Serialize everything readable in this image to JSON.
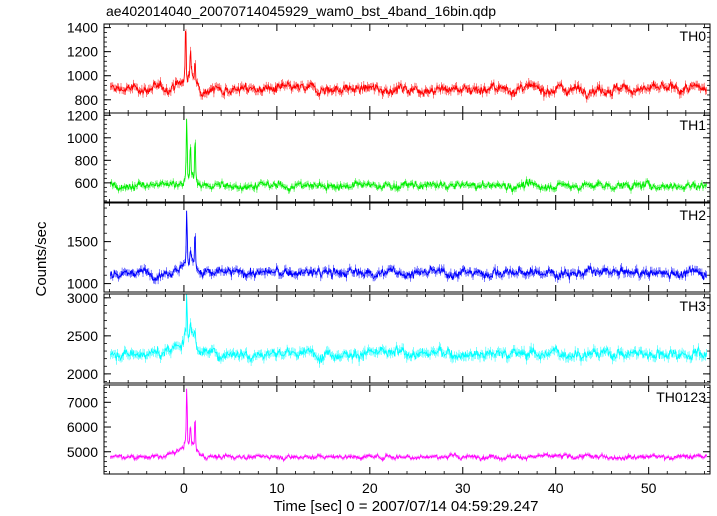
{
  "chart_data": {
    "type": "line",
    "title": "ae402014040_20070714045929_wam0_bst_4band_16bin.qdp",
    "xlabel": "Time [sec] 0 = 2007/07/14 04:59:29.247",
    "ylabel": "Counts/sec",
    "xlim": [
      -8.6,
      56.6
    ],
    "x_ticks": [
      0,
      10,
      20,
      30,
      40,
      50
    ],
    "x_tick_labels": [
      "0",
      "10",
      "20",
      "30",
      "40",
      "50"
    ],
    "error_bars": true,
    "grid": false,
    "legend": "none",
    "series": [
      {
        "name": "TH0",
        "color": "#ff0000",
        "ylim": [
          690,
          1430
        ],
        "y_ticks": [
          800,
          1000,
          1200,
          1400
        ],
        "y_tick_labels": [
          "800",
          "1000",
          "1200",
          "1400"
        ],
        "baseline": 890,
        "noise": 55,
        "peak": [
          {
            "t": 0.2,
            "v": 1400
          },
          {
            "t": 0.7,
            "v": 1150
          },
          {
            "t": 1.2,
            "v": 1050
          }
        ]
      },
      {
        "name": "TH1",
        "color": "#00ee00",
        "ylim": [
          430,
          1220
        ],
        "y_ticks": [
          600,
          800,
          1000,
          1200
        ],
        "y_tick_labels": [
          "600",
          "800",
          "1000",
          "1200"
        ],
        "baseline": 575,
        "noise": 45,
        "peak": [
          {
            "t": 0.3,
            "v": 1200
          },
          {
            "t": 0.7,
            "v": 900
          },
          {
            "t": 1.2,
            "v": 980
          }
        ]
      },
      {
        "name": "TH2",
        "color": "#0000ff",
        "ylim": [
          900,
          1960
        ],
        "y_ticks": [
          1000,
          1500
        ],
        "y_tick_labels": [
          "1000",
          "1500"
        ],
        "baseline": 1130,
        "noise": 75,
        "peak": [
          {
            "t": 0.3,
            "v": 1900
          },
          {
            "t": 0.7,
            "v": 1300
          },
          {
            "t": 1.2,
            "v": 1570
          }
        ]
      },
      {
        "name": "TH3",
        "color": "#00ffff",
        "ylim": [
          1880,
          3050
        ],
        "y_ticks": [
          2000,
          2500,
          3000
        ],
        "y_tick_labels": [
          "2000",
          "2500",
          "3000"
        ],
        "baseline": 2270,
        "noise": 95,
        "peak": [
          {
            "t": 0.3,
            "v": 3000
          },
          {
            "t": 0.7,
            "v": 2400
          },
          {
            "t": 1.2,
            "v": 2450
          }
        ]
      },
      {
        "name": "TH0123",
        "color": "#ff00ff",
        "ylim": [
          4100,
          7700
        ],
        "y_ticks": [
          5000,
          6000,
          7000
        ],
        "y_tick_labels": [
          "5000",
          "6000",
          "7000"
        ],
        "baseline": 4800,
        "noise": 120,
        "peak": [
          {
            "t": 0.3,
            "v": 7600
          },
          {
            "t": 0.7,
            "v": 5700
          },
          {
            "t": 1.2,
            "v": 6050
          }
        ]
      }
    ]
  }
}
